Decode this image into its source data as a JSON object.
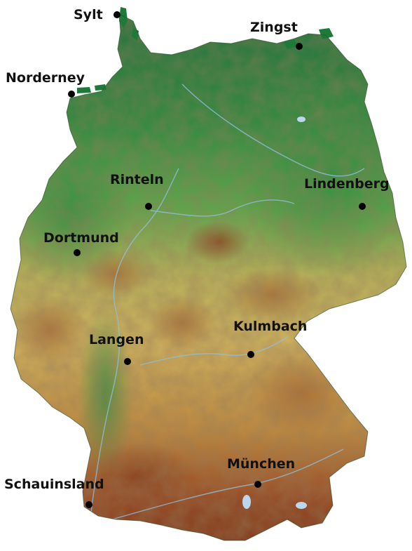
{
  "map": {
    "region": "Germany",
    "style": "relief",
    "colors": {
      "lowland": "#1f7a3a",
      "plain": "#4fa84a",
      "hills": "#c9b55a",
      "mountains": "#a7552a",
      "peaks": "#7a2f18",
      "water": "#bcd7ec",
      "label": "#111111",
      "marker": "#000000"
    }
  },
  "cities": [
    {
      "name": "Sylt"
    },
    {
      "name": "Zingst"
    },
    {
      "name": "Norderney"
    },
    {
      "name": "Rinteln"
    },
    {
      "name": "Lindenberg"
    },
    {
      "name": "Dortmund"
    },
    {
      "name": "Kulmbach"
    },
    {
      "name": "Langen"
    },
    {
      "name": "München"
    },
    {
      "name": "Schauinsland"
    }
  ]
}
